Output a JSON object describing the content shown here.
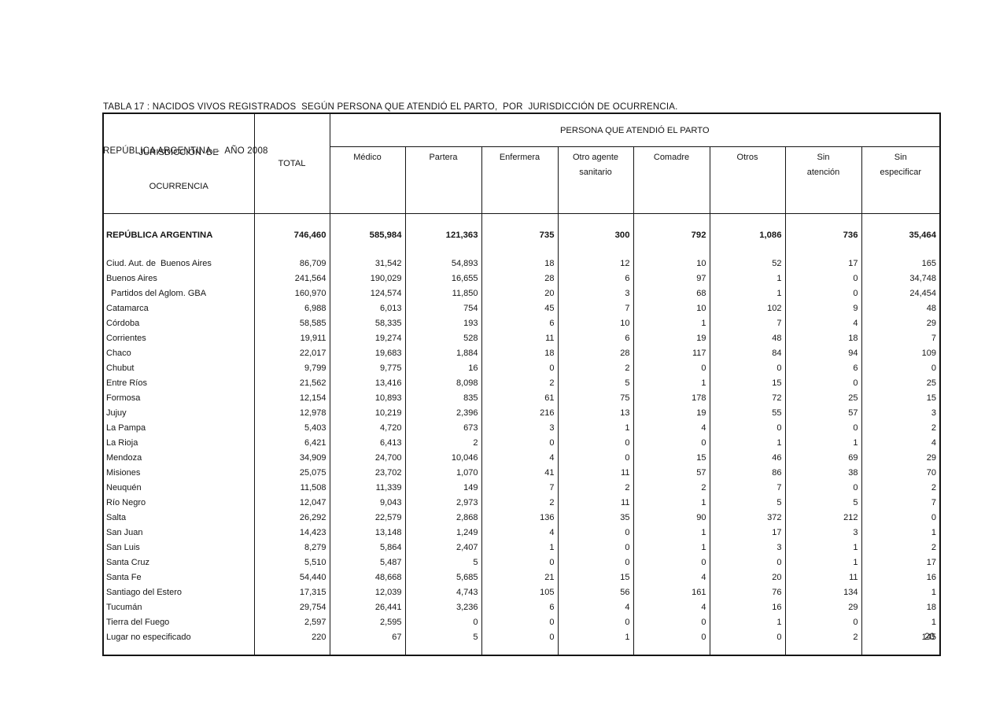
{
  "document": {
    "title_line1": "TABLA 17 : NACIDOS VIVOS REGISTRADOS  SEGÚN PERSONA QUE ATENDIÓ EL PARTO,  POR  JURISDICCIÓN DE OCURRENCIA.",
    "title_line2": "REPÚBLICA ARGENTINA  -  AÑO 2008",
    "page_number": "20"
  },
  "table": {
    "col1_header_line1": "JURISDICCIÓN  DE",
    "col1_header_line2": "OCURRENCIA",
    "total_header": "TOTAL",
    "span_header": "PERSONA QUE ATENDIÓ EL PARTO",
    "sub_headers": [
      {
        "line1": "Médico",
        "line2": ""
      },
      {
        "line1": "Partera",
        "line2": ""
      },
      {
        "line1": "Enfermera",
        "line2": ""
      },
      {
        "line1": "Otro agente",
        "line2": "sanitario"
      },
      {
        "line1": "Comadre",
        "line2": ""
      },
      {
        "line1": "Otros",
        "line2": ""
      },
      {
        "line1": "Sin",
        "line2": "atención"
      },
      {
        "line1": "Sin",
        "line2": "especificar"
      }
    ],
    "total_row": {
      "name": "REPÚBLICA ARGENTINA",
      "values": [
        "746,460",
        "585,984",
        "121,363",
        "735",
        "300",
        "792",
        "1,086",
        "736",
        "35,464"
      ]
    },
    "rows": [
      {
        "name": "Ciud. Aut. de  Buenos Aires",
        "indent": false,
        "values": [
          "86,709",
          "31,542",
          "54,893",
          "18",
          "12",
          "10",
          "52",
          "17",
          "165"
        ]
      },
      {
        "name": "Buenos Aires",
        "indent": false,
        "values": [
          "241,564",
          "190,029",
          "16,655",
          "28",
          "6",
          "97",
          "1",
          "0",
          "34,748"
        ]
      },
      {
        "name": "Partidos del Aglom. GBA",
        "indent": true,
        "values": [
          "160,970",
          "124,574",
          "11,850",
          "20",
          "3",
          "68",
          "1",
          "0",
          "24,454"
        ]
      },
      {
        "name": "Catamarca",
        "indent": false,
        "values": [
          "6,988",
          "6,013",
          "754",
          "45",
          "7",
          "10",
          "102",
          "9",
          "48"
        ]
      },
      {
        "name": "Córdoba",
        "indent": false,
        "values": [
          "58,585",
          "58,335",
          "193",
          "6",
          "10",
          "1",
          "7",
          "4",
          "29"
        ]
      },
      {
        "name": "Corrientes",
        "indent": false,
        "values": [
          "19,911",
          "19,274",
          "528",
          "11",
          "6",
          "19",
          "48",
          "18",
          "7"
        ]
      },
      {
        "name": "Chaco",
        "indent": false,
        "values": [
          "22,017",
          "19,683",
          "1,884",
          "18",
          "28",
          "117",
          "84",
          "94",
          "109"
        ]
      },
      {
        "name": "Chubut",
        "indent": false,
        "values": [
          "9,799",
          "9,775",
          "16",
          "0",
          "2",
          "0",
          "0",
          "6",
          "0"
        ]
      },
      {
        "name": "Entre Ríos",
        "indent": false,
        "values": [
          "21,562",
          "13,416",
          "8,098",
          "2",
          "5",
          "1",
          "15",
          "0",
          "25"
        ]
      },
      {
        "name": "Formosa",
        "indent": false,
        "values": [
          "12,154",
          "10,893",
          "835",
          "61",
          "75",
          "178",
          "72",
          "25",
          "15"
        ]
      },
      {
        "name": "Jujuy",
        "indent": false,
        "values": [
          "12,978",
          "10,219",
          "2,396",
          "216",
          "13",
          "19",
          "55",
          "57",
          "3"
        ]
      },
      {
        "name": "La Pampa",
        "indent": false,
        "values": [
          "5,403",
          "4,720",
          "673",
          "3",
          "1",
          "4",
          "0",
          "0",
          "2"
        ]
      },
      {
        "name": "La Rioja",
        "indent": false,
        "values": [
          "6,421",
          "6,413",
          "2",
          "0",
          "0",
          "0",
          "1",
          "1",
          "4"
        ]
      },
      {
        "name": "Mendoza",
        "indent": false,
        "values": [
          "34,909",
          "24,700",
          "10,046",
          "4",
          "0",
          "15",
          "46",
          "69",
          "29"
        ]
      },
      {
        "name": "Misiones",
        "indent": false,
        "values": [
          "25,075",
          "23,702",
          "1,070",
          "41",
          "11",
          "57",
          "86",
          "38",
          "70"
        ]
      },
      {
        "name": "Neuquén",
        "indent": false,
        "values": [
          "11,508",
          "11,339",
          "149",
          "7",
          "2",
          "2",
          "7",
          "0",
          "2"
        ]
      },
      {
        "name": "Río Negro",
        "indent": false,
        "values": [
          "12,047",
          "9,043",
          "2,973",
          "2",
          "11",
          "1",
          "5",
          "5",
          "7"
        ]
      },
      {
        "name": "Salta",
        "indent": false,
        "values": [
          "26,292",
          "22,579",
          "2,868",
          "136",
          "35",
          "90",
          "372",
          "212",
          "0"
        ]
      },
      {
        "name": "San Juan",
        "indent": false,
        "values": [
          "14,423",
          "13,148",
          "1,249",
          "4",
          "0",
          "1",
          "17",
          "3",
          "1"
        ]
      },
      {
        "name": "San Luis",
        "indent": false,
        "values": [
          "8,279",
          "5,864",
          "2,407",
          "1",
          "0",
          "1",
          "3",
          "1",
          "2"
        ]
      },
      {
        "name": "Santa Cruz",
        "indent": false,
        "values": [
          "5,510",
          "5,487",
          "5",
          "0",
          "0",
          "0",
          "0",
          "1",
          "17"
        ]
      },
      {
        "name": "Santa Fe",
        "indent": false,
        "values": [
          "54,440",
          "48,668",
          "5,685",
          "21",
          "15",
          "4",
          "20",
          "11",
          "16"
        ]
      },
      {
        "name": "Santiago del Estero",
        "indent": false,
        "values": [
          "17,315",
          "12,039",
          "4,743",
          "105",
          "56",
          "161",
          "76",
          "134",
          "1"
        ]
      },
      {
        "name": "Tucumán",
        "indent": false,
        "values": [
          "29,754",
          "26,441",
          "3,236",
          "6",
          "4",
          "4",
          "16",
          "29",
          "18"
        ]
      },
      {
        "name": "Tierra del Fuego",
        "indent": false,
        "values": [
          "2,597",
          "2,595",
          "0",
          "0",
          "0",
          "0",
          "1",
          "0",
          "1"
        ]
      },
      {
        "name": "Lugar no especificado",
        "indent": false,
        "values": [
          "220",
          "67",
          "5",
          "0",
          "1",
          "0",
          "0",
          "2",
          "145"
        ]
      }
    ]
  }
}
